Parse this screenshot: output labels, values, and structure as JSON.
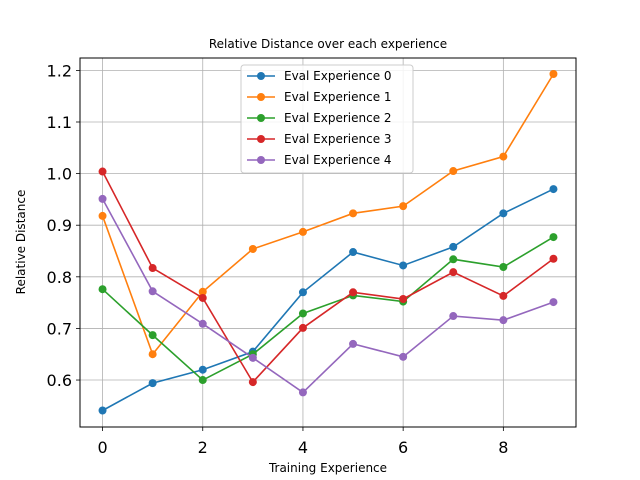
{
  "chart_data": {
    "type": "line",
    "title": "Relative Distance over each experience",
    "xlabel": "Training Experience",
    "ylabel": "Relative Distance",
    "x": [
      0,
      1,
      2,
      3,
      4,
      5,
      6,
      7,
      8,
      9
    ],
    "xlim": [
      -0.45,
      9.45
    ],
    "ylim": [
      0.509,
      1.224
    ],
    "xticks": [
      0,
      2,
      4,
      6,
      8
    ],
    "yticks": [
      0.6,
      0.7,
      0.8,
      0.9,
      1.0,
      1.1,
      1.2
    ],
    "ytick_labels": [
      "0.6",
      "0.7",
      "0.8",
      "0.9",
      "1.0",
      "1.1",
      "1.2"
    ],
    "grid": true,
    "legend_position": "upper center",
    "series": [
      {
        "name": "Eval Experience 0",
        "color": "#1f77b4",
        "values": [
          0.541,
          0.594,
          0.62,
          0.655,
          0.77,
          0.848,
          0.822,
          0.858,
          0.923,
          0.97
        ]
      },
      {
        "name": "Eval Experience 1",
        "color": "#ff7f0e",
        "values": [
          0.918,
          0.65,
          0.771,
          0.854,
          0.887,
          0.923,
          0.937,
          1.005,
          1.033,
          1.193
        ]
      },
      {
        "name": "Eval Experience 2",
        "color": "#2ca02c",
        "values": [
          0.776,
          0.687,
          0.6,
          0.65,
          0.729,
          0.764,
          0.752,
          0.834,
          0.819,
          0.877
        ]
      },
      {
        "name": "Eval Experience 3",
        "color": "#d62728",
        "values": [
          1.004,
          0.817,
          0.759,
          0.596,
          0.701,
          0.77,
          0.757,
          0.809,
          0.763,
          0.835
        ]
      },
      {
        "name": "Eval Experience 4",
        "color": "#9467bd",
        "values": [
          0.951,
          0.772,
          0.709,
          0.643,
          0.576,
          0.67,
          0.645,
          0.724,
          0.716,
          0.751
        ]
      }
    ]
  }
}
